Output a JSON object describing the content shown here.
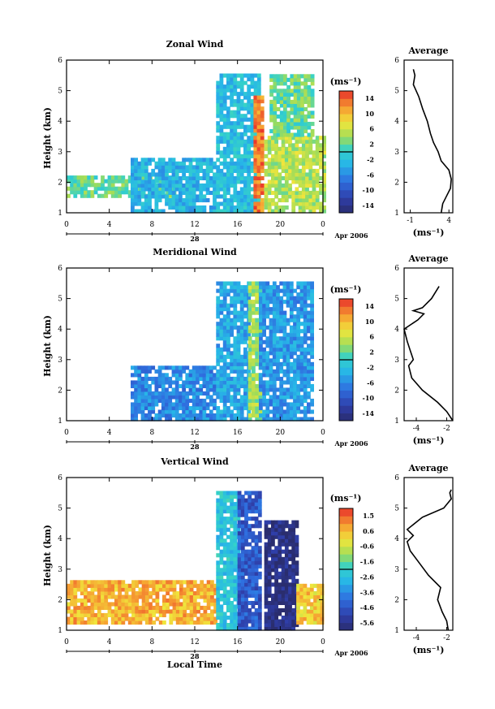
{
  "figure": {
    "shared_xlabel": "Local Time",
    "date_label": "Apr 2006",
    "day_label": "28",
    "x_ticks": [
      "0",
      "4",
      "8",
      "12",
      "16",
      "20",
      "0"
    ],
    "x_range_hours": [
      0,
      24
    ]
  },
  "chart_data": [
    {
      "type": "heatmap",
      "title": "Zonal Wind",
      "ylabel": "Height (km)",
      "ylim": [
        1,
        6
      ],
      "y_ticks": [
        "1",
        "2",
        "3",
        "4",
        "5",
        "6"
      ],
      "colorbar_unit": "(ms⁻¹)",
      "colorbar_ticks": [
        "14",
        "10",
        "6",
        "2",
        "-2",
        "-6",
        "-10",
        "-14"
      ],
      "colorbar_range": [
        -16,
        16
      ],
      "approx_fields": [
        {
          "hours": [
            0,
            10
          ],
          "heights": [
            1.5,
            2.2
          ],
          "value": 2
        },
        {
          "hours": [
            6,
            14
          ],
          "heights": [
            1.0,
            2.8
          ],
          "value": -3
        },
        {
          "hours": [
            14,
            18
          ],
          "heights": [
            1.0,
            5.5
          ],
          "value": -2
        },
        {
          "hours": [
            17.5,
            18.3
          ],
          "heights": [
            1.0,
            4.8
          ],
          "value": 13
        },
        {
          "hours": [
            18.5,
            24
          ],
          "heights": [
            1.0,
            3.5
          ],
          "value": 5
        },
        {
          "hours": [
            19,
            23
          ],
          "heights": [
            3.5,
            5.5
          ],
          "value": 2
        }
      ],
      "average_panel": {
        "title": "Average",
        "xlabel": "(ms⁻¹)",
        "x_ticks": [
          "-1",
          "4"
        ],
        "xlim": [
          -1.8,
          4.5
        ],
        "ylim": [
          1,
          6
        ],
        "y_ticks": [
          "1",
          "2",
          "3",
          "4",
          "5",
          "6"
        ],
        "profile": {
          "height": [
            1.0,
            1.3,
            1.5,
            1.8,
            2.1,
            2.4,
            2.7,
            3.0,
            3.3,
            3.6,
            4.0,
            4.4,
            4.8,
            5.2,
            5.5,
            5.7
          ],
          "value": [
            3.0,
            3.2,
            3.6,
            4.2,
            4.3,
            4.0,
            3.0,
            2.6,
            2.0,
            1.6,
            1.2,
            0.6,
            0.1,
            -0.6,
            -0.4,
            -0.6
          ]
        }
      }
    },
    {
      "type": "heatmap",
      "title": "Meridional Wind",
      "ylabel": "Height (km)",
      "ylim": [
        1,
        6
      ],
      "y_ticks": [
        "1",
        "2",
        "3",
        "4",
        "5",
        "6"
      ],
      "colorbar_unit": "(ms⁻¹)",
      "colorbar_ticks": [
        "14",
        "10",
        "6",
        "2",
        "-2",
        "-6",
        "-10",
        "-14"
      ],
      "colorbar_range": [
        -16,
        16
      ],
      "approx_fields": [
        {
          "hours": [
            6,
            14
          ],
          "heights": [
            1.0,
            2.8
          ],
          "value": -6
        },
        {
          "hours": [
            14,
            17
          ],
          "heights": [
            1.0,
            5.5
          ],
          "value": -4
        },
        {
          "hours": [
            17,
            18
          ],
          "heights": [
            1.0,
            5.5
          ],
          "value": 4
        },
        {
          "hours": [
            18,
            23
          ],
          "heights": [
            1.0,
            5.5
          ],
          "value": -5
        }
      ],
      "average_panel": {
        "title": "Average",
        "xlabel": "(ms⁻¹)",
        "x_ticks": [
          "-4",
          "-2"
        ],
        "xlim": [
          -4.8,
          -1.6
        ],
        "ylim": [
          1,
          6
        ],
        "y_ticks": [
          "1",
          "2",
          "3",
          "4",
          "5",
          "6"
        ],
        "profile": {
          "height": [
            1.0,
            1.3,
            1.6,
            2.0,
            2.4,
            2.8,
            3.0,
            3.3,
            3.6,
            4.0,
            4.3,
            4.5,
            4.6,
            4.7,
            5.0,
            5.4
          ],
          "value": [
            -1.6,
            -2.0,
            -2.6,
            -3.6,
            -4.3,
            -4.5,
            -4.2,
            -4.4,
            -4.6,
            -4.8,
            -3.9,
            -3.5,
            -4.2,
            -3.6,
            -3.0,
            -2.5
          ]
        }
      }
    },
    {
      "type": "heatmap",
      "title": "Vertical Wind",
      "ylabel": "Height (km)",
      "ylim": [
        1,
        6
      ],
      "y_ticks": [
        "1",
        "2",
        "3",
        "4",
        "5",
        "6"
      ],
      "colorbar_unit": "(ms⁻¹)",
      "colorbar_ticks": [
        "1.5",
        "0.6",
        "-0.6",
        "-1.6",
        "-2.6",
        "-3.6",
        "-4.6",
        "-5.6"
      ],
      "colorbar_range": [
        -6.1,
        1.9
      ],
      "approx_fields": [
        {
          "hours": [
            0,
            14
          ],
          "heights": [
            1.2,
            2.6
          ],
          "value": 0.5
        },
        {
          "hours": [
            14,
            16
          ],
          "heights": [
            1.0,
            5.5
          ],
          "value": -2.5
        },
        {
          "hours": [
            16,
            18
          ],
          "heights": [
            1.0,
            5.5
          ],
          "value": -4.5
        },
        {
          "hours": [
            18.5,
            21.5
          ],
          "heights": [
            1.0,
            4.5
          ],
          "value": -5.8
        },
        {
          "hours": [
            21.5,
            24
          ],
          "heights": [
            1.2,
            2.5
          ],
          "value": 0.2
        }
      ],
      "average_panel": {
        "title": "Average",
        "xlabel": "(ms⁻¹)",
        "x_ticks": [
          "-4",
          "-2"
        ],
        "xlim": [
          -4.8,
          -1.6
        ],
        "ylim": [
          1,
          6
        ],
        "y_ticks": [
          "1",
          "2",
          "3",
          "4",
          "5",
          "6"
        ],
        "profile": {
          "height": [
            1.0,
            1.3,
            1.6,
            2.0,
            2.4,
            2.8,
            3.2,
            3.6,
            3.9,
            4.1,
            4.3,
            4.7,
            5.0,
            5.3,
            5.5,
            5.6
          ],
          "value": [
            -1.9,
            -2.0,
            -2.3,
            -2.6,
            -2.4,
            -3.2,
            -3.8,
            -4.4,
            -4.6,
            -4.2,
            -4.6,
            -3.6,
            -2.2,
            -1.7,
            -1.8,
            -1.7
          ]
        }
      }
    }
  ]
}
